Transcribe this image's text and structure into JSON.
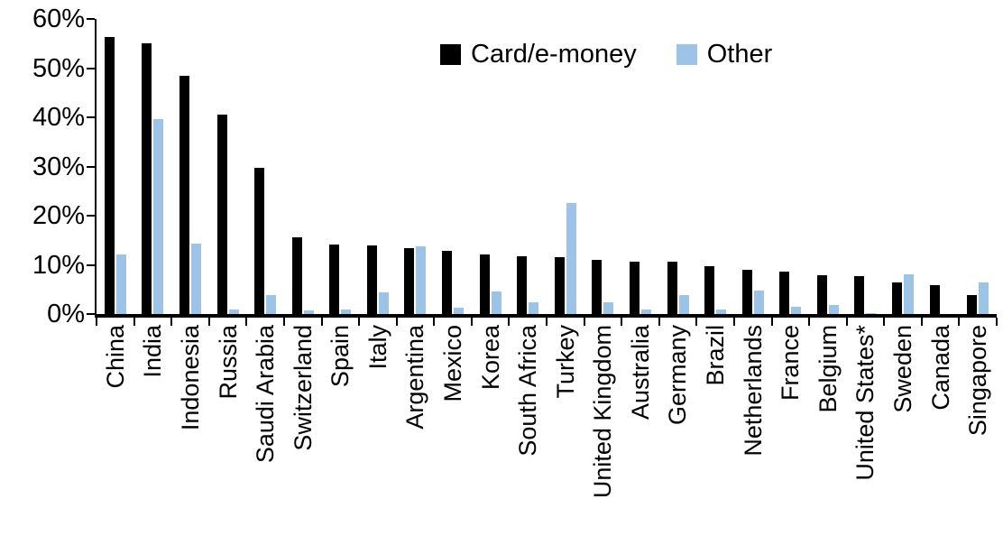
{
  "chart_data": {
    "type": "bar",
    "title": "",
    "xlabel": "",
    "ylabel": "",
    "ylim": [
      0,
      60
    ],
    "ytick_step": 10,
    "ytick_labels": [
      "0%",
      "10%",
      "20%",
      "30%",
      "40%",
      "50%",
      "60%"
    ],
    "grid": false,
    "legend_position": "top-center",
    "categories": [
      "China",
      "India",
      "Indonesia",
      "Russia",
      "Saudi Arabia",
      "Switzerland",
      "Spain",
      "Italy",
      "Argentina",
      "Mexico",
      "Korea",
      "South Africa",
      "Turkey",
      "United Kingdom",
      "Australia",
      "Germany",
      "Brazil",
      "Netherlands",
      "France",
      "Belgium",
      "United States*",
      "Sweden",
      "Canada",
      "Singapore"
    ],
    "series": [
      {
        "name": "Card/e-money",
        "color": "#000000",
        "values": [
          56.3,
          55,
          48.4,
          40.6,
          29.8,
          15.6,
          14.1,
          13.9,
          13.4,
          12.9,
          12.2,
          11.7,
          11.5,
          11,
          10.7,
          10.6,
          9.8,
          9,
          8.6,
          7.9,
          7.8,
          6.4,
          5.8,
          3.8
        ]
      },
      {
        "name": "Other",
        "color": "#9DC3E6",
        "values": [
          12.2,
          39.7,
          14.4,
          0.9,
          3.8,
          0.8,
          0.9,
          4.4,
          13.8,
          1.2,
          4.6,
          2.3,
          22.5,
          2.3,
          0.9,
          3.9,
          1,
          4.7,
          1.4,
          1.9,
          0.2,
          8,
          0,
          6.5
        ]
      }
    ]
  }
}
